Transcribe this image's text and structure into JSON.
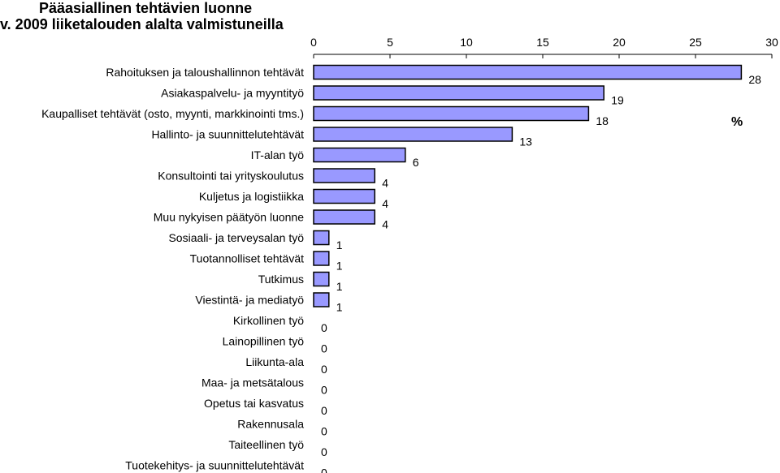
{
  "chart_data": {
    "type": "bar",
    "orientation": "horizontal",
    "title_lines": [
      "Pääasiallinen tehtävien luonne",
      "v. 2009 liiketalouden alalta valmistuneilla"
    ],
    "unit_label": "%",
    "xlim": [
      0,
      30
    ],
    "x_ticks": [
      0,
      5,
      10,
      15,
      20,
      25,
      30
    ],
    "grid": false,
    "bar_color": "#9999ff",
    "categories": [
      "Rahoituksen ja taloushallinnon tehtävät",
      "Asiakaspalvelu- ja myyntityö",
      "Kaupalliset tehtävät (osto, myynti, markkinointi tms.)",
      "Hallinto- ja suunnittelutehtävät",
      "IT-alan työ",
      "Konsultointi tai yrityskoulutus",
      "Kuljetus ja logistiikka",
      "Muu nykyisen päätyön luonne",
      "Sosiaali- ja terveysalan työ",
      "Tuotannolliset tehtävät",
      "Tutkimus",
      "Viestintä- ja mediatyö",
      "Kirkollinen työ",
      "Lainopillinen työ",
      "Liikunta-ala",
      "Maa- ja metsätalous",
      "Opetus tai kasvatus",
      "Rakennusala",
      "Taiteellinen työ",
      "Tuotekehitys- ja suunnittelutehtävät"
    ],
    "values": [
      28,
      19,
      18,
      13,
      6,
      4,
      4,
      4,
      1,
      1,
      1,
      1,
      0,
      0,
      0,
      0,
      0,
      0,
      0,
      0
    ]
  }
}
